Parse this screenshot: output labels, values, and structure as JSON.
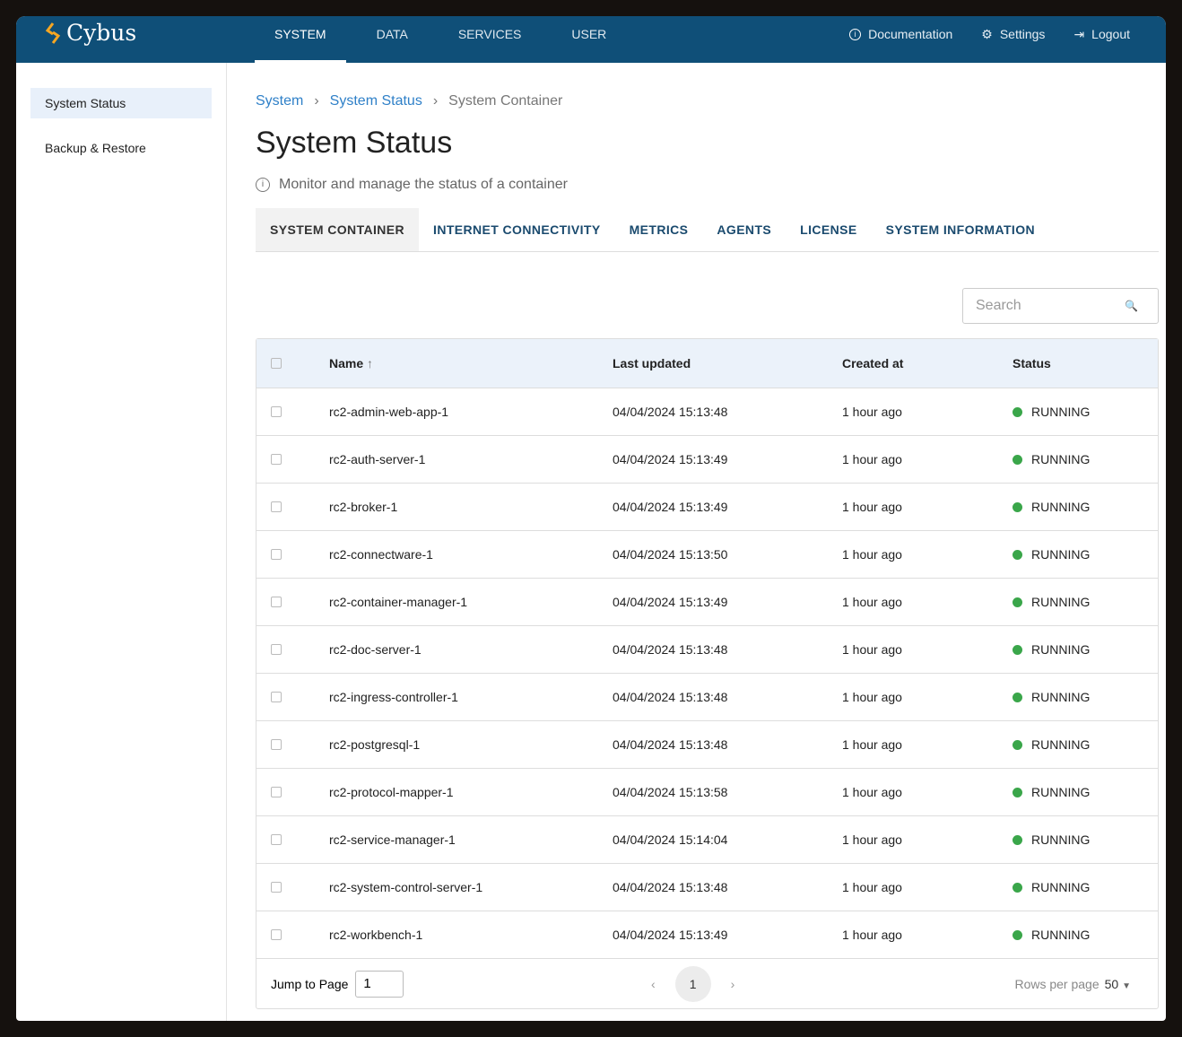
{
  "header": {
    "brand": "Cybus",
    "nav": [
      "SYSTEM",
      "DATA",
      "SERVICES",
      "USER"
    ],
    "documentation": "Documentation",
    "settings": "Settings",
    "logout": "Logout"
  },
  "sidebar": {
    "items": [
      "System Status",
      "Backup & Restore"
    ]
  },
  "breadcrumb": [
    "System",
    "System Status",
    "System Container"
  ],
  "title": "System Status",
  "subtitle": "Monitor and manage the status of a container",
  "tabs": [
    "SYSTEM CONTAINER",
    "INTERNET CONNECTIVITY",
    "METRICS",
    "AGENTS",
    "LICENSE",
    "SYSTEM INFORMATION"
  ],
  "search": {
    "placeholder": "Search"
  },
  "table": {
    "columns": [
      "Name",
      "Last updated",
      "Created at",
      "Status"
    ],
    "rows": [
      [
        "rc2-admin-web-app-1",
        "04/04/2024 15:13:48",
        "1 hour ago",
        "RUNNING"
      ],
      [
        "rc2-auth-server-1",
        "04/04/2024 15:13:49",
        "1 hour ago",
        "RUNNING"
      ],
      [
        "rc2-broker-1",
        "04/04/2024 15:13:49",
        "1 hour ago",
        "RUNNING"
      ],
      [
        "rc2-connectware-1",
        "04/04/2024 15:13:50",
        "1 hour ago",
        "RUNNING"
      ],
      [
        "rc2-container-manager-1",
        "04/04/2024 15:13:49",
        "1 hour ago",
        "RUNNING"
      ],
      [
        "rc2-doc-server-1",
        "04/04/2024 15:13:48",
        "1 hour ago",
        "RUNNING"
      ],
      [
        "rc2-ingress-controller-1",
        "04/04/2024 15:13:48",
        "1 hour ago",
        "RUNNING"
      ],
      [
        "rc2-postgresql-1",
        "04/04/2024 15:13:48",
        "1 hour ago",
        "RUNNING"
      ],
      [
        "rc2-protocol-mapper-1",
        "04/04/2024 15:13:58",
        "1 hour ago",
        "RUNNING"
      ],
      [
        "rc2-service-manager-1",
        "04/04/2024 15:14:04",
        "1 hour ago",
        "RUNNING"
      ],
      [
        "rc2-system-control-server-1",
        "04/04/2024 15:13:48",
        "1 hour ago",
        "RUNNING"
      ],
      [
        "rc2-workbench-1",
        "04/04/2024 15:13:49",
        "1 hour ago",
        "RUNNING"
      ]
    ]
  },
  "footer": {
    "jump_label": "Jump to Page",
    "jump_value": "1",
    "page": "1",
    "rows_label": "Rows per page",
    "rows_value": "50"
  },
  "colors": {
    "header": "#0f4f78",
    "running": "#3aa64a",
    "accent": "#2f80c8"
  }
}
